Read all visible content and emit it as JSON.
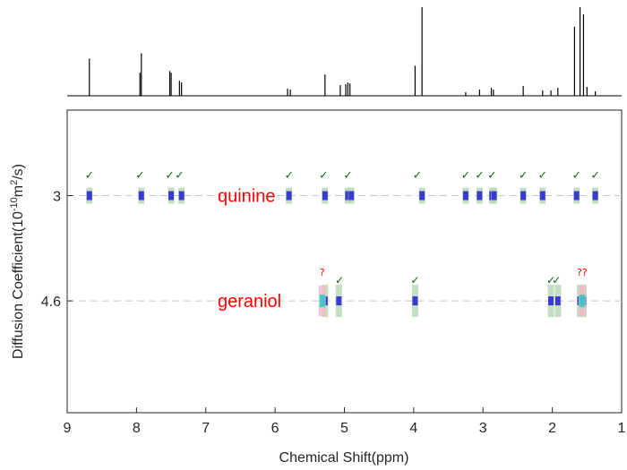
{
  "chart_data": {
    "type": "scatter",
    "subtype": "DOSY NMR spectrum",
    "title": "",
    "xlabel": "Chemical Shift(ppm)",
    "ylabel": "Diffusion Coefficient(10^{-10}m^2/s)",
    "ylabel_parts": {
      "before": "Diffusion Coefficient(10",
      "exp1": "-10",
      "middle": "m",
      "exp2": "2",
      "after": "/s)"
    },
    "xlim": [
      9,
      1
    ],
    "x_reversed": true,
    "x_ticks": [
      "9",
      "8",
      "7",
      "6",
      "5",
      "4",
      "3",
      "2",
      "1"
    ],
    "x_tick_values": [
      9,
      8,
      7,
      6,
      5,
      4,
      3,
      2,
      1
    ],
    "ylim": [
      1.7,
      6.3
    ],
    "y_reversed": true,
    "y_ticks": [
      "3",
      "4.6"
    ],
    "y_tick_values": [
      3.0,
      4.6
    ],
    "grid": false,
    "reference_lines": {
      "style": "dashed",
      "color": "#c8c8c8",
      "values": [
        3.0,
        4.6
      ]
    },
    "top_spectrum": {
      "peaks": [
        {
          "ppm": 8.68,
          "h": 0.42
        },
        {
          "ppm": 7.95,
          "h": 0.26
        },
        {
          "ppm": 7.93,
          "h": 0.48
        },
        {
          "ppm": 7.52,
          "h": 0.28
        },
        {
          "ppm": 7.5,
          "h": 0.26
        },
        {
          "ppm": 7.38,
          "h": 0.17
        },
        {
          "ppm": 7.35,
          "h": 0.15
        },
        {
          "ppm": 5.82,
          "h": 0.08
        },
        {
          "ppm": 5.78,
          "h": 0.07
        },
        {
          "ppm": 5.28,
          "h": 0.24
        },
        {
          "ppm": 5.06,
          "h": 0.12
        },
        {
          "ppm": 4.98,
          "h": 0.13
        },
        {
          "ppm": 4.95,
          "h": 0.15
        },
        {
          "ppm": 4.92,
          "h": 0.14
        },
        {
          "ppm": 3.98,
          "h": 0.34
        },
        {
          "ppm": 3.88,
          "h": 1.0
        },
        {
          "ppm": 3.25,
          "h": 0.04
        },
        {
          "ppm": 3.05,
          "h": 0.07
        },
        {
          "ppm": 2.88,
          "h": 0.09
        },
        {
          "ppm": 2.85,
          "h": 0.07
        },
        {
          "ppm": 2.42,
          "h": 0.11
        },
        {
          "ppm": 2.14,
          "h": 0.06
        },
        {
          "ppm": 2.02,
          "h": 0.06
        },
        {
          "ppm": 1.92,
          "h": 0.09
        },
        {
          "ppm": 1.68,
          "h": 0.78
        },
        {
          "ppm": 1.6,
          "h": 1.0
        },
        {
          "ppm": 1.55,
          "h": 0.92
        },
        {
          "ppm": 1.5,
          "h": 0.1
        },
        {
          "ppm": 1.38,
          "h": 0.05
        }
      ]
    },
    "series": [
      {
        "compound": "quinine",
        "diffusion": 3.0,
        "peaks_ppm": [
          8.68,
          7.93,
          7.5,
          7.35,
          5.8,
          5.28,
          4.95,
          4.9,
          3.88,
          3.25,
          3.05,
          2.87,
          2.84,
          2.42,
          2.14,
          1.65,
          1.38
        ],
        "checked_ppm": [
          8.68,
          7.95,
          7.52,
          7.38,
          5.8,
          5.3,
          4.95,
          3.95,
          3.25,
          3.05,
          2.87,
          2.42,
          2.14,
          1.65,
          1.38
        ]
      },
      {
        "compound": "geraniol",
        "diffusion": 4.6,
        "peaks_ppm": [
          5.28,
          5.08,
          3.98,
          2.02,
          1.92,
          1.6,
          1.55
        ],
        "checked_ppm": [
          5.07,
          3.98,
          2.02,
          1.94
        ],
        "uncertain": [
          {
            "ppm": 5.32,
            "text": "?"
          },
          {
            "ppm": 1.57,
            "text": "??"
          }
        ]
      }
    ],
    "labels": [
      {
        "text": "quinine",
        "x": 6.7,
        "y": 3.0,
        "color": "#ff0000"
      },
      {
        "text": "geraniol",
        "x": 6.7,
        "y": 4.6,
        "color": "#ff0000"
      }
    ],
    "colors": {
      "check": "#006400",
      "question": "#ff0000",
      "label": "#ff0000",
      "spot_core": "#3a3acf",
      "spot_halo": "#b8d8b8",
      "spot_uncertain": "#f5b8c8",
      "spot_cyan": "#20d0c0"
    },
    "check_glyph": "✓"
  }
}
